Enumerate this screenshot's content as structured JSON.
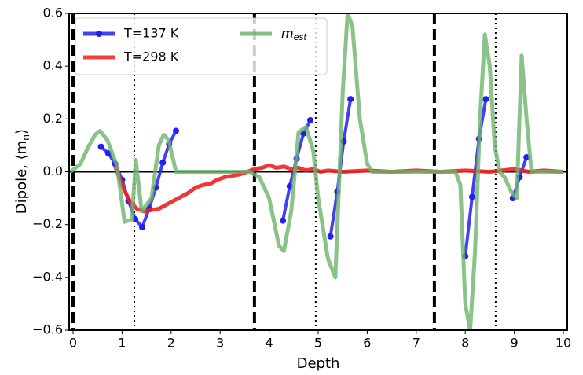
{
  "chart_data": {
    "type": "line",
    "xlabel": "Depth",
    "ylabel": "Dipole, ⟨m_n⟩",
    "xlim": [
      -0.08,
      10.08
    ],
    "ylim": [
      -0.6,
      0.6
    ],
    "xticks": [
      0,
      1,
      2,
      3,
      4,
      5,
      6,
      7,
      8,
      9,
      10
    ],
    "yticks": [
      {
        "value": -0.6,
        "label": "−0.6"
      },
      {
        "value": -0.4,
        "label": "−0.4"
      },
      {
        "value": -0.2,
        "label": "−0.2"
      },
      {
        "value": 0,
        "label": "0.0"
      },
      0.2,
      0.4,
      0.6
    ],
    "hline": 0,
    "vlines_dashed": [
      0,
      3.7,
      7.37
    ],
    "vlines_dotted": [
      1.25,
      4.95,
      8.62
    ],
    "legend": "upper left",
    "series": [
      {
        "name": "T=137 K",
        "color": "#2020f0",
        "markers": true,
        "x": [
          0.57,
          0.72,
          0.86,
          1.0,
          1.13,
          1.27,
          1.41,
          1.55,
          1.69,
          1.83,
          1.96,
          2.1,
          null,
          4.28,
          4.42,
          4.56,
          4.7,
          4.84,
          null,
          5.25,
          5.39,
          5.52,
          5.66,
          null,
          8.0,
          8.14,
          8.28,
          8.42,
          null,
          8.97,
          9.11,
          9.25
        ],
        "values": [
          0.095,
          0.07,
          0.03,
          -0.03,
          -0.11,
          -0.18,
          -0.21,
          -0.14,
          -0.06,
          0.035,
          0.105,
          0.155,
          null,
          -0.185,
          -0.055,
          0.05,
          0.145,
          0.195,
          null,
          -0.245,
          -0.075,
          0.115,
          0.275,
          null,
          -0.32,
          -0.095,
          0.125,
          0.275,
          null,
          -0.1,
          -0.02,
          0.055
        ]
      },
      {
        "name": "T=298 K",
        "color": "#f02020",
        "markers": false,
        "x": [
          0.86,
          1.0,
          1.15,
          1.3,
          1.45,
          1.6,
          1.75,
          1.9,
          2.05,
          2.2,
          2.35,
          2.5,
          2.65,
          2.8,
          2.95,
          3.1,
          3.25,
          3.4,
          3.55,
          3.7,
          3.85,
          4.0,
          4.15,
          4.3,
          4.45,
          4.6,
          4.75,
          4.9,
          5.05,
          5.2,
          5.5,
          6.0,
          6.5,
          7.0,
          7.5,
          8.0,
          8.5,
          9.0,
          9.3,
          9.6,
          10.0
        ],
        "values": [
          0.02,
          -0.05,
          -0.11,
          -0.14,
          -0.15,
          -0.145,
          -0.14,
          -0.125,
          -0.11,
          -0.095,
          -0.08,
          -0.06,
          -0.05,
          -0.045,
          -0.03,
          -0.02,
          -0.015,
          -0.01,
          0.0,
          0.01,
          0.015,
          0.025,
          0.015,
          0.02,
          0.01,
          0.015,
          0.005,
          0.01,
          0.0,
          0.005,
          0.0,
          0.005,
          0.0,
          0.005,
          0.0,
          0.005,
          0.0,
          0.01,
          0.0,
          0.005,
          0.0
        ]
      },
      {
        "name": "m_est",
        "color": "#6db46d",
        "markers": false,
        "x": [
          -0.05,
          0.15,
          0.3,
          0.45,
          0.55,
          0.7,
          0.9,
          1.05,
          1.2,
          1.28,
          1.4,
          1.6,
          1.75,
          1.85,
          1.95,
          2.1,
          2.5,
          3.0,
          3.6,
          3.8,
          4.0,
          4.2,
          4.3,
          4.45,
          4.6,
          4.75,
          4.9,
          5.0,
          5.2,
          5.35,
          5.5,
          5.6,
          5.7,
          5.85,
          6.0,
          6.1,
          7.0,
          7.8,
          7.9,
          8.0,
          8.1,
          8.2,
          8.3,
          8.4,
          8.5,
          8.6,
          8.7,
          8.8,
          8.95,
          9.05,
          9.15,
          9.25,
          9.35,
          9.5,
          10.0
        ],
        "values": [
          0.0,
          0.03,
          0.09,
          0.14,
          0.155,
          0.12,
          0.02,
          -0.19,
          -0.18,
          0.045,
          -0.15,
          -0.1,
          0.1,
          0.14,
          0.12,
          0.0,
          0.0,
          0.0,
          0.0,
          -0.02,
          -0.1,
          -0.28,
          -0.3,
          -0.15,
          0.15,
          0.17,
          0.08,
          -0.1,
          -0.33,
          -0.4,
          0.3,
          0.6,
          0.55,
          0.2,
          0.03,
          0.0,
          0.0,
          0.0,
          -0.05,
          -0.5,
          -0.6,
          -0.3,
          0.2,
          0.52,
          0.4,
          0.1,
          0.0,
          -0.02,
          -0.08,
          -0.1,
          0.44,
          0.2,
          0.0,
          0.0,
          0.0
        ]
      }
    ]
  }
}
